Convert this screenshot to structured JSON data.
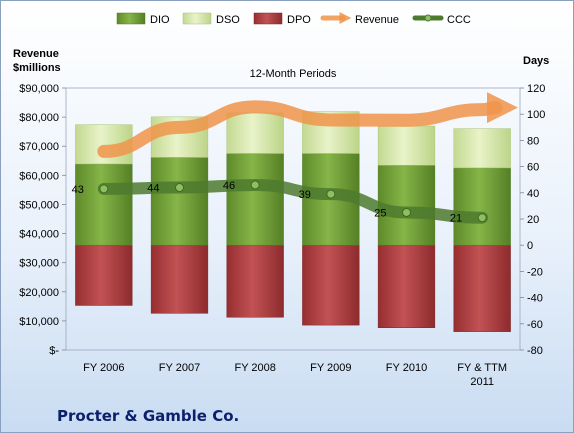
{
  "chart_data": {
    "type": "bar",
    "title": "12-Month Periods",
    "company": "Procter & Gamble Co.",
    "categories": [
      "FY 2006",
      "FY 2007",
      "FY 2008",
      "FY 2009",
      "FY 2010",
      "FY & TTM 2011"
    ],
    "y_left": {
      "label": "Revenue $millions",
      "range": [
        0,
        90000
      ],
      "ticks": [
        "$-",
        "$10,000",
        "$20,000",
        "$30,000",
        "$40,000",
        "$50,000",
        "$60,000",
        "$70,000",
        "$80,000",
        "$90,000"
      ]
    },
    "y_right": {
      "label": "Days",
      "range": [
        -80,
        120
      ],
      "ticks": [
        "-80",
        "-60",
        "-40",
        "-20",
        "0",
        "20",
        "40",
        "60",
        "80",
        "100",
        "120"
      ]
    },
    "series": [
      {
        "name": "DIO",
        "type": "stacked-bar",
        "axis": "right",
        "color": "#6f9a35",
        "values": [
          62,
          67,
          70,
          70,
          61,
          59
        ]
      },
      {
        "name": "DSO",
        "type": "stacked-bar",
        "axis": "right",
        "color": "#d6e6a8",
        "values": [
          30,
          31,
          31,
          32,
          30,
          30
        ]
      },
      {
        "name": "DPO",
        "type": "negative-bar",
        "axis": "right",
        "color": "#a8393b",
        "values": [
          -46,
          -52,
          -55,
          -61,
          -63,
          -66
        ]
      },
      {
        "name": "Revenue",
        "type": "line",
        "axis": "left",
        "color": "#f0944a",
        "values": [
          68222,
          76476,
          83503,
          79029,
          78938,
          82559
        ]
      },
      {
        "name": "CCC",
        "type": "line",
        "axis": "right",
        "color": "#4d7a2e",
        "values": [
          43,
          44,
          46,
          39,
          25,
          21
        ],
        "labels": [
          "43",
          "44",
          "46",
          "39",
          "25",
          "21"
        ]
      }
    ],
    "legend": {
      "placement": "top",
      "entries": [
        "DIO",
        "DSO",
        "DPO",
        "Revenue",
        "CCC"
      ]
    },
    "grid": false
  }
}
